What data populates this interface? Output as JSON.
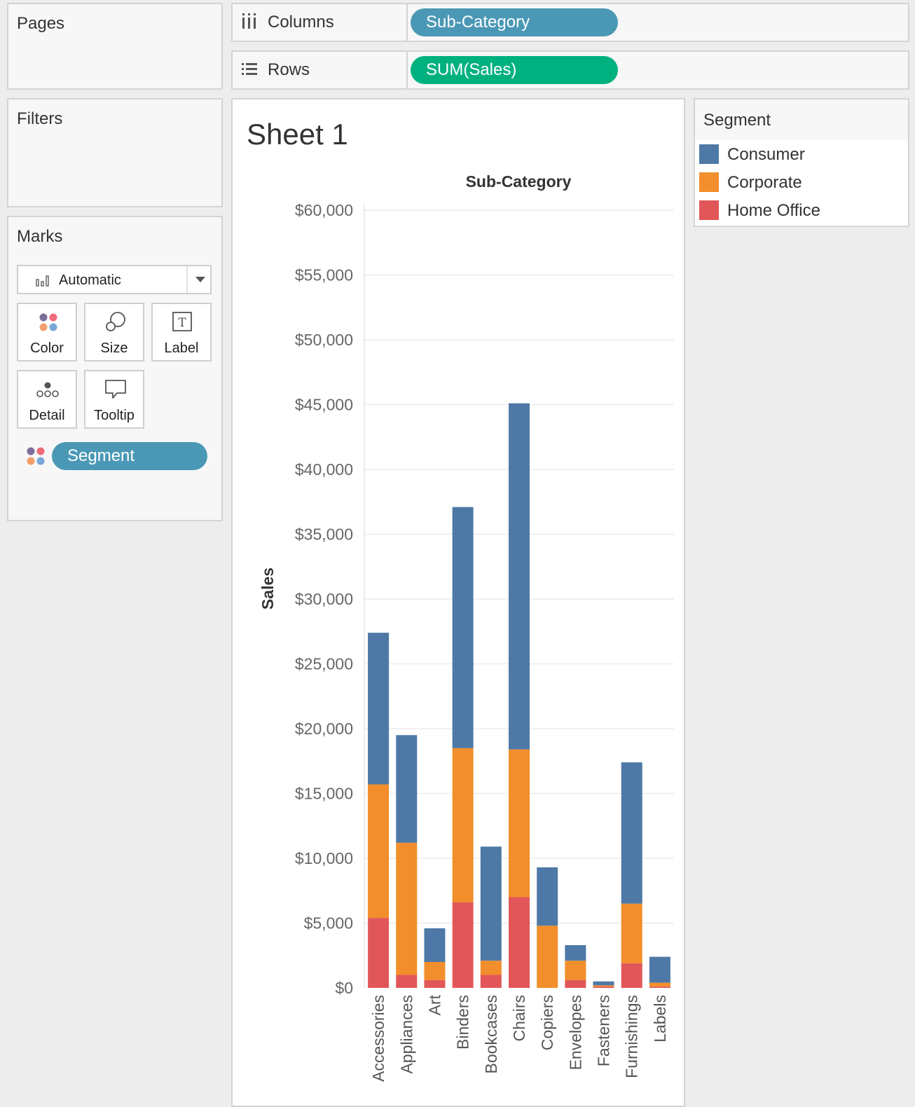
{
  "pages": {
    "title": "Pages"
  },
  "filters": {
    "title": "Filters"
  },
  "shelves": {
    "columns": {
      "label": "Columns",
      "pill": "Sub-Category",
      "pill_color": "#4a98b5"
    },
    "rows": {
      "label": "Rows",
      "pill": "SUM(Sales)",
      "pill_color": "#00b180"
    }
  },
  "marks": {
    "title": "Marks",
    "mark_type": "Automatic",
    "buttons": {
      "color": "Color",
      "size": "Size",
      "label": "Label",
      "detail": "Detail",
      "tooltip": "Tooltip"
    },
    "color_pill": "Segment",
    "color_pill_color": "#4a98b5"
  },
  "sheet": {
    "title": "Sheet 1"
  },
  "legend": {
    "title": "Segment",
    "items": [
      {
        "name": "Consumer",
        "color": "#4e79a7"
      },
      {
        "name": "Corporate",
        "color": "#f28e2b"
      },
      {
        "name": "Home Office",
        "color": "#e15759"
      }
    ]
  },
  "chart_data": {
    "type": "bar",
    "stacked": true,
    "title": "Sub-Category",
    "xlabel": "Sub-Category",
    "ylabel": "Sales",
    "ylim": [
      0,
      60000
    ],
    "yticks": [
      "$0",
      "$5,000",
      "$10,000",
      "$15,000",
      "$20,000",
      "$25,000",
      "$30,000",
      "$35,000",
      "$40,000",
      "$45,000",
      "$50,000",
      "$55,000",
      "$60,000"
    ],
    "grid": true,
    "categories": [
      "Accessories",
      "Appliances",
      "Art",
      "Binders",
      "Bookcases",
      "Chairs",
      "Copiers",
      "Envelopes",
      "Fasteners",
      "Furnishings",
      "Labels"
    ],
    "series": [
      {
        "name": "Home Office",
        "color": "#e15759",
        "values": [
          5400,
          1000,
          600,
          6600,
          1000,
          7000,
          0,
          600,
          100,
          1900,
          100
        ]
      },
      {
        "name": "Corporate",
        "color": "#f28e2b",
        "values": [
          10300,
          10200,
          1400,
          11900,
          1100,
          11400,
          4800,
          1500,
          100,
          4600,
          300
        ]
      },
      {
        "name": "Consumer",
        "color": "#4e79a7",
        "values": [
          11700,
          8300,
          2600,
          18600,
          8800,
          26700,
          4500,
          1200,
          300,
          10900,
          2000
        ]
      }
    ]
  }
}
